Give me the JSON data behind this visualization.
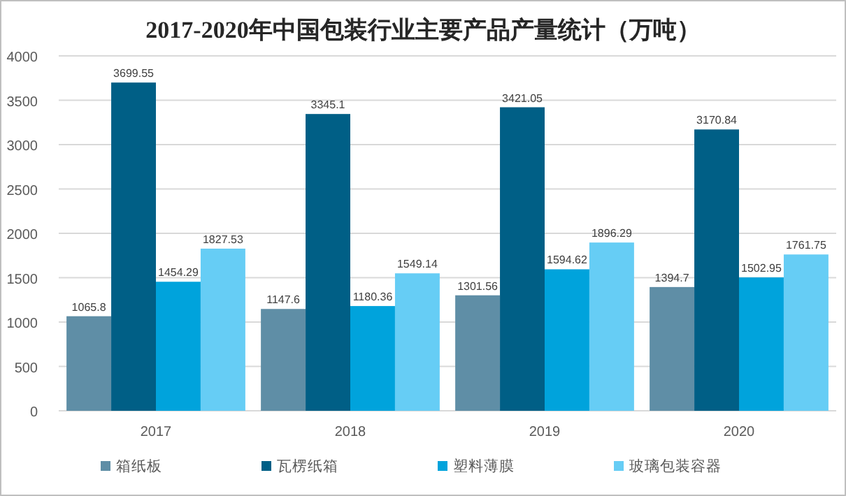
{
  "chart_data": {
    "type": "bar",
    "title": "2017-2020年中国包装行业主要产品产量统计（万吨）",
    "categories": [
      "2017",
      "2018",
      "2019",
      "2020"
    ],
    "series": [
      {
        "name": "箱纸板",
        "color": "#5f8ea6",
        "values": [
          1065.8,
          1147.6,
          1301.56,
          1394.7
        ]
      },
      {
        "name": "瓦楞纸箱",
        "color": "#005f86",
        "values": [
          3699.55,
          3345.1,
          3421.05,
          3170.84
        ]
      },
      {
        "name": "塑料薄膜",
        "color": "#00a3dc",
        "values": [
          1454.29,
          1180.36,
          1594.62,
          1502.95
        ]
      },
      {
        "name": "玻璃包装容器",
        "color": "#66cdf5",
        "values": [
          1827.53,
          1549.14,
          1896.29,
          1761.75
        ]
      }
    ],
    "ylim": [
      0,
      4000
    ],
    "yticks": [
      0,
      500,
      1000,
      1500,
      2000,
      2500,
      3000,
      3500,
      4000
    ],
    "grid": "y",
    "legend": "bottom",
    "data_labels": true
  }
}
